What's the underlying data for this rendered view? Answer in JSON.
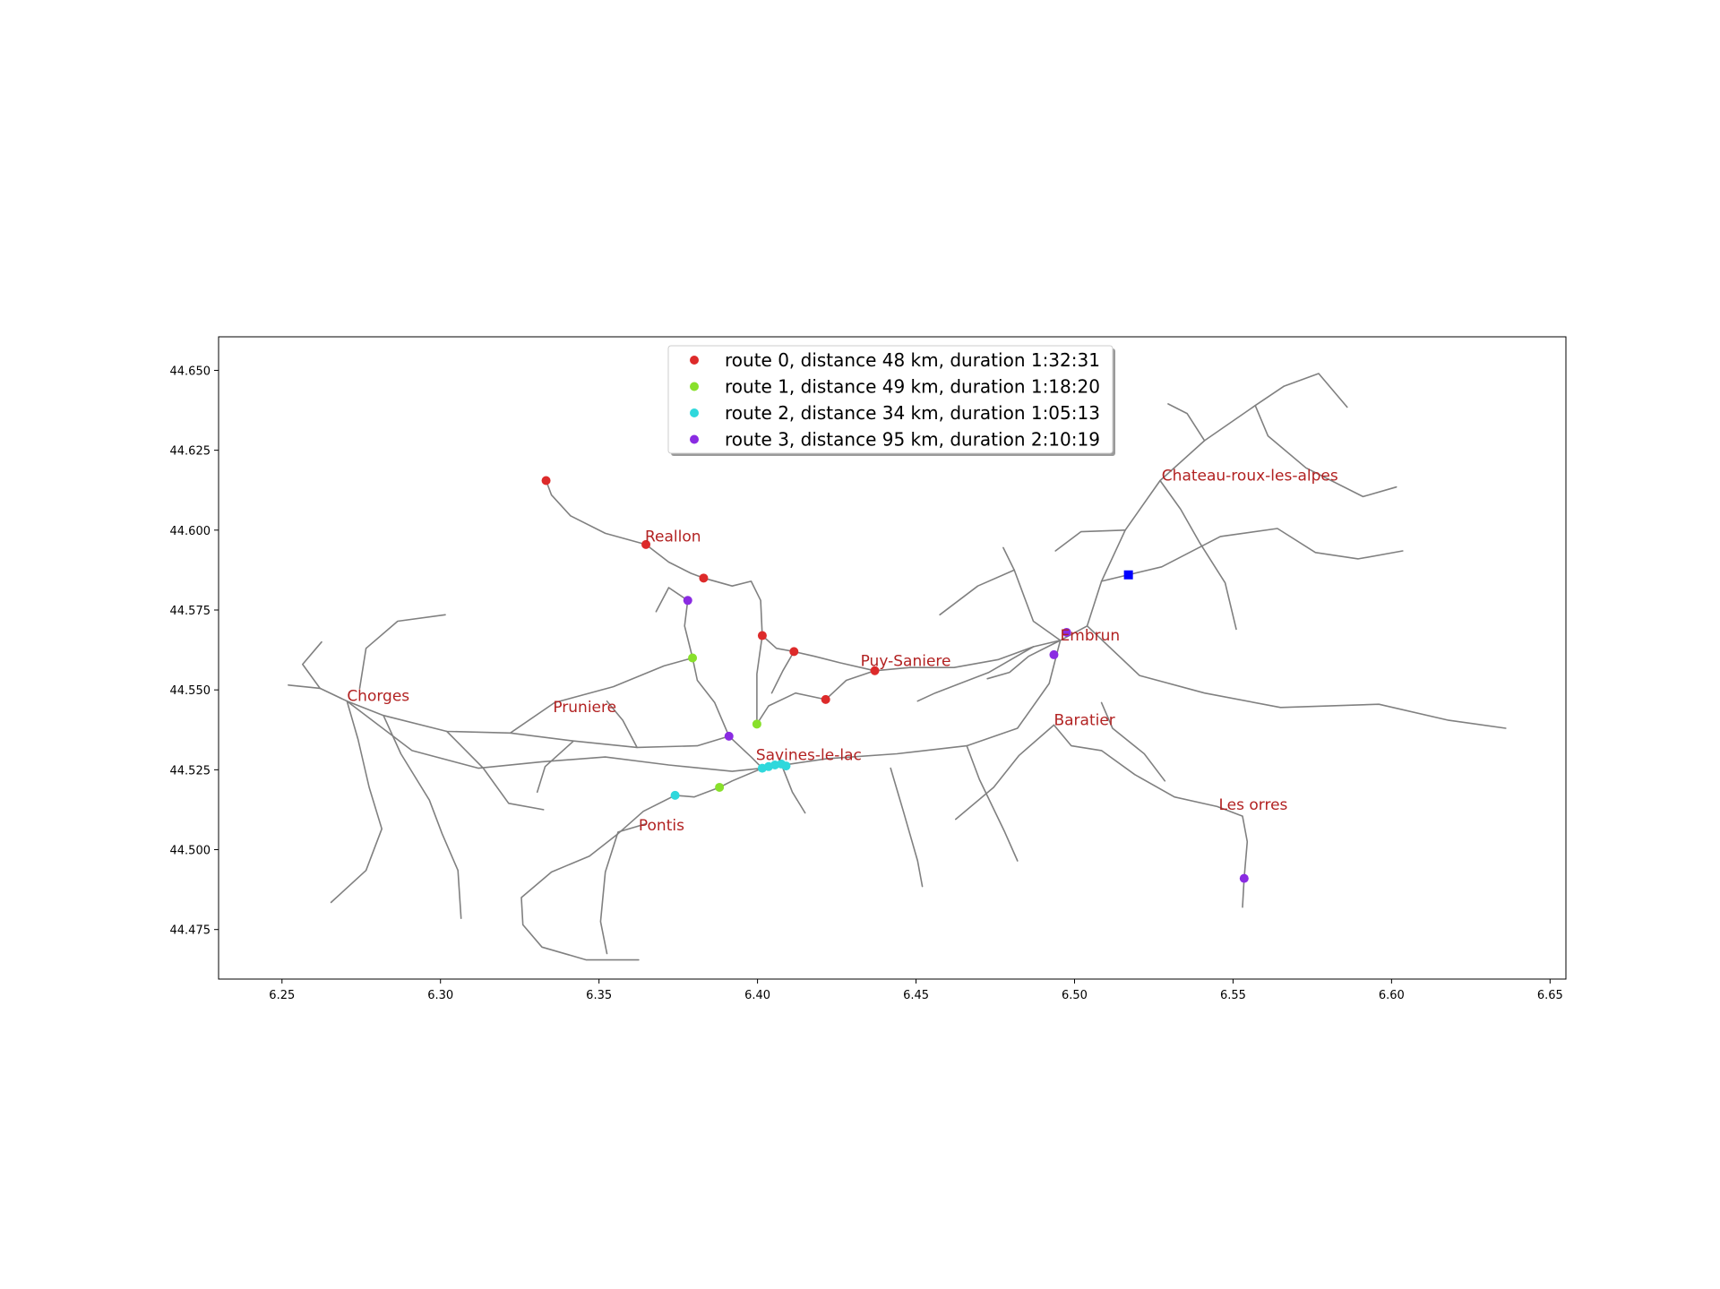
{
  "chart_data": {
    "type": "scatter",
    "title": "",
    "xlabel": "",
    "ylabel": "",
    "xlim": [
      6.23,
      6.655
    ],
    "ylim": [
      44.4595,
      44.6605
    ],
    "xticks": [
      "6.25",
      "6.30",
      "6.35",
      "6.40",
      "6.45",
      "6.50",
      "6.55",
      "6.60",
      "6.65"
    ],
    "yticks": [
      "44.475",
      "44.500",
      "44.525",
      "44.550",
      "44.575",
      "44.600",
      "44.625",
      "44.650"
    ],
    "grid": false,
    "legend_position": "top-center",
    "towns": [
      {
        "name": "Reallon",
        "x": 6.3645,
        "y": 44.5965
      },
      {
        "name": "Chateau-roux-les-alpes",
        "x": 6.5275,
        "y": 44.6155
      },
      {
        "name": "Embrun",
        "x": 6.4955,
        "y": 44.5655
      },
      {
        "name": "Puy-Saniere",
        "x": 6.4325,
        "y": 44.5575
      },
      {
        "name": "Chorges",
        "x": 6.2705,
        "y": 44.5465
      },
      {
        "name": "Pruniere",
        "x": 6.3355,
        "y": 44.543
      },
      {
        "name": "Baratier",
        "x": 6.4935,
        "y": 44.539
      },
      {
        "name": "Savines-le-lac",
        "x": 6.3995,
        "y": 44.528
      },
      {
        "name": "Les orres",
        "x": 6.5455,
        "y": 44.5125
      },
      {
        "name": "Pontis",
        "x": 6.3625,
        "y": 44.506
      }
    ],
    "depot": {
      "x": 6.517,
      "y": 44.586,
      "color": "#0000ff"
    },
    "series": [
      {
        "name": "route 0, distance 48 km, duration 1:32:31",
        "color": "#dd2a2a",
        "points": [
          [
            6.3333,
            44.6155
          ],
          [
            6.3648,
            44.5955
          ],
          [
            6.383,
            44.585
          ],
          [
            6.4015,
            44.567
          ],
          [
            6.4115,
            44.562
          ],
          [
            6.4215,
            44.547
          ],
          [
            6.437,
            44.556
          ]
        ]
      },
      {
        "name": "route 1, distance 49 km, duration 1:18:20",
        "color": "#88e02b",
        "points": [
          [
            6.3795,
            44.56
          ],
          [
            6.3998,
            44.5393
          ],
          [
            6.388,
            44.5195
          ]
        ]
      },
      {
        "name": "route 2, distance 34 km, duration 1:05:13",
        "color": "#2fd8dc",
        "points": [
          [
            6.374,
            44.517
          ],
          [
            6.4015,
            44.5255
          ],
          [
            6.4035,
            44.526
          ],
          [
            6.4055,
            44.5265
          ],
          [
            6.4075,
            44.5268
          ],
          [
            6.409,
            44.5262
          ]
        ]
      },
      {
        "name": "route 3, distance 95 km, duration 2:10:19",
        "color": "#8a2be2",
        "points": [
          [
            6.378,
            44.578
          ],
          [
            6.391,
            44.5355
          ],
          [
            6.4935,
            44.561
          ],
          [
            6.4975,
            44.568
          ],
          [
            6.5535,
            44.491
          ]
        ]
      }
    ],
    "roads": [
      [
        [
          6.3333,
          44.6155
        ],
        [
          6.335,
          44.611
        ],
        [
          6.341,
          44.6045
        ],
        [
          6.352,
          44.599
        ],
        [
          6.3648,
          44.5955
        ],
        [
          6.372,
          44.59
        ],
        [
          6.379,
          44.5865
        ],
        [
          6.383,
          44.585
        ],
        [
          6.392,
          44.5825
        ],
        [
          6.398,
          44.584
        ],
        [
          6.401,
          44.578
        ],
        [
          6.4015,
          44.567
        ],
        [
          6.406,
          44.563
        ],
        [
          6.4115,
          44.562
        ],
        [
          6.418,
          44.5605
        ],
        [
          6.426,
          44.5585
        ],
        [
          6.437,
          44.556
        ],
        [
          6.448,
          44.557
        ],
        [
          6.462,
          44.557
        ],
        [
          6.476,
          44.5595
        ],
        [
          6.487,
          44.5635
        ],
        [
          6.4955,
          44.5655
        ],
        [
          6.504,
          44.57
        ],
        [
          6.5085,
          44.584
        ],
        [
          6.516,
          44.6
        ],
        [
          6.527,
          44.6155
        ],
        [
          6.541,
          44.628
        ],
        [
          6.557,
          44.639
        ],
        [
          6.566,
          44.645
        ]
      ],
      [
        [
          6.252,
          44.5515
        ],
        [
          6.262,
          44.5505
        ],
        [
          6.2705,
          44.5465
        ],
        [
          6.282,
          44.542
        ],
        [
          6.302,
          44.537
        ],
        [
          6.322,
          44.5365
        ],
        [
          6.342,
          44.534
        ],
        [
          6.362,
          44.532
        ],
        [
          6.381,
          44.5325
        ],
        [
          6.391,
          44.5355
        ],
        [
          6.398,
          44.529
        ],
        [
          6.4015,
          44.5255
        ]
      ],
      [
        [
          6.2705,
          44.5465
        ],
        [
          6.291,
          44.531
        ],
        [
          6.312,
          44.5255
        ],
        [
          6.332,
          44.5275
        ],
        [
          6.352,
          44.529
        ],
        [
          6.372,
          44.5265
        ],
        [
          6.392,
          44.5245
        ],
        [
          6.4015,
          44.5255
        ],
        [
          6.422,
          44.5285
        ],
        [
          6.444,
          44.53
        ],
        [
          6.466,
          44.5325
        ],
        [
          6.482,
          44.538
        ],
        [
          6.492,
          44.552
        ],
        [
          6.4955,
          44.5655
        ]
      ],
      [
        [
          6.4015,
          44.5255
        ],
        [
          6.392,
          44.5215
        ],
        [
          6.388,
          44.5195
        ],
        [
          6.38,
          44.5165
        ],
        [
          6.374,
          44.517
        ],
        [
          6.364,
          44.512
        ],
        [
          6.356,
          44.505
        ],
        [
          6.347,
          44.498
        ],
        [
          6.335,
          44.493
        ],
        [
          6.3255,
          44.485
        ],
        [
          6.326,
          44.4765
        ],
        [
          6.332,
          44.4695
        ],
        [
          6.346,
          44.4655
        ],
        [
          6.3625,
          44.4655
        ]
      ],
      [
        [
          6.3645,
          44.508
        ],
        [
          6.356,
          44.5055
        ],
        [
          6.352,
          44.493
        ],
        [
          6.3505,
          44.4775
        ],
        [
          6.3525,
          44.4675
        ]
      ],
      [
        [
          6.391,
          44.5355
        ],
        [
          6.3865,
          44.546
        ],
        [
          6.381,
          44.553
        ],
        [
          6.3795,
          44.56
        ],
        [
          6.377,
          44.57
        ],
        [
          6.378,
          44.578
        ],
        [
          6.372,
          44.582
        ],
        [
          6.368,
          44.5745
        ]
      ],
      [
        [
          6.3998,
          44.5393
        ],
        [
          6.4035,
          44.545
        ],
        [
          6.412,
          44.549
        ],
        [
          6.4215,
          44.547
        ],
        [
          6.428,
          44.553
        ],
        [
          6.437,
          44.556
        ]
      ],
      [
        [
          6.4015,
          44.567
        ],
        [
          6.3998,
          44.555
        ],
        [
          6.3998,
          44.5393
        ]
      ],
      [
        [
          6.4115,
          44.562
        ],
        [
          6.408,
          44.556
        ],
        [
          6.4045,
          44.549
        ]
      ],
      [
        [
          6.4075,
          44.5268
        ],
        [
          6.411,
          44.518
        ],
        [
          6.415,
          44.5115
        ]
      ],
      [
        [
          6.442,
          44.5255
        ],
        [
          6.446,
          44.512
        ],
        [
          6.4505,
          44.4965
        ],
        [
          6.452,
          44.4885
        ]
      ],
      [
        [
          6.466,
          44.5325
        ],
        [
          6.47,
          44.522
        ],
        [
          6.478,
          44.5055
        ],
        [
          6.482,
          44.4965
        ]
      ],
      [
        [
          6.4935,
          44.539
        ],
        [
          6.499,
          44.5325
        ],
        [
          6.5085,
          44.531
        ],
        [
          6.519,
          44.5235
        ],
        [
          6.5315,
          44.5165
        ],
        [
          6.545,
          44.5135
        ],
        [
          6.553,
          44.5105
        ],
        [
          6.5545,
          44.5025
        ],
        [
          6.5535,
          44.491
        ],
        [
          6.553,
          44.482
        ]
      ],
      [
        [
          6.5085,
          44.546
        ],
        [
          6.512,
          44.538
        ],
        [
          6.522,
          44.53
        ],
        [
          6.5285,
          44.5215
        ]
      ],
      [
        [
          6.504,
          44.57
        ],
        [
          6.5205,
          44.5545
        ],
        [
          6.541,
          44.549
        ],
        [
          6.565,
          44.5445
        ],
        [
          6.596,
          44.5455
        ],
        [
          6.618,
          44.5405
        ],
        [
          6.636,
          44.538
        ]
      ],
      [
        [
          6.5085,
          44.584
        ],
        [
          6.5275,
          44.5885
        ],
        [
          6.546,
          44.598
        ],
        [
          6.564,
          44.6005
        ],
        [
          6.576,
          44.593
        ],
        [
          6.5895,
          44.591
        ],
        [
          6.6035,
          44.5935
        ]
      ],
      [
        [
          6.527,
          44.6155
        ],
        [
          6.5335,
          44.6065
        ],
        [
          6.5395,
          44.596
        ],
        [
          6.5475,
          44.5835
        ],
        [
          6.551,
          44.569
        ]
      ],
      [
        [
          6.4955,
          44.5655
        ],
        [
          6.487,
          44.5715
        ],
        [
          6.481,
          44.5875
        ],
        [
          6.4775,
          44.5945
        ]
      ],
      [
        [
          6.487,
          44.5635
        ],
        [
          6.473,
          44.5555
        ],
        [
          6.456,
          44.549
        ],
        [
          6.4505,
          44.5465
        ]
      ],
      [
        [
          6.2705,
          44.5465
        ],
        [
          6.274,
          44.5345
        ],
        [
          6.2775,
          44.5195
        ],
        [
          6.2815,
          44.5065
        ],
        [
          6.2765,
          44.4935
        ],
        [
          6.2655,
          44.4835
        ]
      ],
      [
        [
          6.282,
          44.542
        ],
        [
          6.2875,
          44.53
        ],
        [
          6.2965,
          44.5155
        ],
        [
          6.3005,
          44.505
        ],
        [
          6.3055,
          44.4935
        ],
        [
          6.3065,
          44.4785
        ]
      ],
      [
        [
          6.302,
          44.537
        ],
        [
          6.3135,
          44.5255
        ],
        [
          6.3215,
          44.5145
        ],
        [
          6.3325,
          44.5125
        ]
      ],
      [
        [
          6.262,
          44.5505
        ],
        [
          6.2565,
          44.558
        ],
        [
          6.2625,
          44.565
        ]
      ],
      [
        [
          6.2745,
          44.5505
        ],
        [
          6.2765,
          44.563
        ],
        [
          6.2865,
          44.5715
        ],
        [
          6.3015,
          44.5735
        ]
      ],
      [
        [
          6.322,
          44.5365
        ],
        [
          6.336,
          44.546
        ],
        [
          6.3545,
          44.551
        ],
        [
          6.3705,
          44.5575
        ],
        [
          6.3795,
          44.56
        ]
      ],
      [
        [
          6.342,
          44.534
        ],
        [
          6.333,
          44.526
        ],
        [
          6.3305,
          44.518
        ]
      ],
      [
        [
          6.362,
          44.532
        ],
        [
          6.3575,
          44.5405
        ],
        [
          6.3525,
          44.5465
        ]
      ],
      [
        [
          6.541,
          44.628
        ],
        [
          6.5355,
          44.6365
        ],
        [
          6.5295,
          44.6395
        ]
      ],
      [
        [
          6.557,
          44.639
        ],
        [
          6.561,
          44.6295
        ],
        [
          6.573,
          44.6195
        ],
        [
          6.591,
          44.6105
        ],
        [
          6.6015,
          44.6135
        ]
      ],
      [
        [
          6.566,
          44.645
        ],
        [
          6.577,
          44.649
        ],
        [
          6.586,
          44.6385
        ]
      ],
      [
        [
          6.516,
          44.6
        ],
        [
          6.502,
          44.5995
        ],
        [
          6.494,
          44.5935
        ]
      ],
      [
        [
          6.481,
          44.5875
        ],
        [
          6.4695,
          44.5825
        ],
        [
          6.4575,
          44.5735
        ]
      ],
      [
        [
          6.4955,
          44.5655
        ],
        [
          6.4855,
          44.5605
        ],
        [
          6.4795,
          44.5555
        ],
        [
          6.4725,
          44.5535
        ]
      ],
      [
        [
          6.4935,
          44.539
        ],
        [
          6.4825,
          44.5295
        ],
        [
          6.4745,
          44.5195
        ],
        [
          6.4625,
          44.5095
        ]
      ]
    ]
  }
}
